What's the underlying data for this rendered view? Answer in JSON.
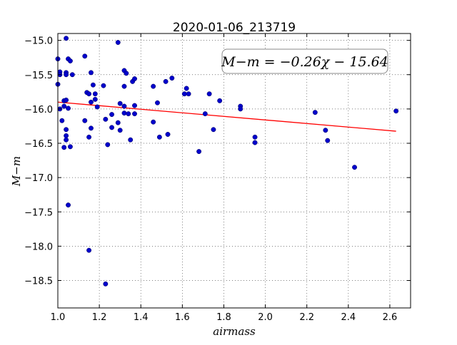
{
  "chart_data": {
    "type": "scatter",
    "title": "2020-01-06_213719",
    "xlabel": "airmass",
    "ylabel": "M−m",
    "xlim": [
      1.0,
      2.7
    ],
    "ylim": [
      -18.9,
      -14.9
    ],
    "xticks": [
      "1.0",
      "1.2",
      "1.4",
      "1.6",
      "1.8",
      "2.0",
      "2.2",
      "2.4",
      "2.6"
    ],
    "yticks": [
      "−15.0",
      "−15.5",
      "−16.0",
      "−16.5",
      "−17.0",
      "−17.5",
      "−18.0",
      "−18.5"
    ],
    "grid": true,
    "annotation": "M−m = −0.26χ − 15.64",
    "fit": {
      "slope": -0.26,
      "intercept": -15.64,
      "x_range": [
        1.0,
        2.63
      ],
      "color": "#ff0000"
    },
    "point_color": "#0000cc",
    "points": [
      [
        1.0,
        -15.27
      ],
      [
        1.0,
        -15.64
      ],
      [
        1.01,
        -15.46
      ],
      [
        1.01,
        -15.5
      ],
      [
        1.01,
        -16.0
      ],
      [
        1.02,
        -16.17
      ],
      [
        1.03,
        -15.96
      ],
      [
        1.03,
        -15.88
      ],
      [
        1.03,
        -16.56
      ],
      [
        1.04,
        -15.87
      ],
      [
        1.04,
        -15.47
      ],
      [
        1.04,
        -15.5
      ],
      [
        1.04,
        -16.3
      ],
      [
        1.04,
        -16.39
      ],
      [
        1.04,
        -16.45
      ],
      [
        1.04,
        -14.97
      ],
      [
        1.05,
        -15.99
      ],
      [
        1.05,
        -17.4
      ],
      [
        1.05,
        -15.27
      ],
      [
        1.06,
        -15.3
      ],
      [
        1.06,
        -16.55
      ],
      [
        1.07,
        -15.5
      ],
      [
        1.13,
        -15.23
      ],
      [
        1.13,
        -16.17
      ],
      [
        1.14,
        -15.76
      ],
      [
        1.15,
        -15.78
      ],
      [
        1.15,
        -16.41
      ],
      [
        1.15,
        -18.06
      ],
      [
        1.16,
        -15.47
      ],
      [
        1.16,
        -15.9
      ],
      [
        1.16,
        -16.28
      ],
      [
        1.17,
        -15.65
      ],
      [
        1.18,
        -15.78
      ],
      [
        1.18,
        -15.86
      ],
      [
        1.19,
        -15.97
      ],
      [
        1.22,
        -15.66
      ],
      [
        1.23,
        -16.15
      ],
      [
        1.23,
        -18.55
      ],
      [
        1.24,
        -16.52
      ],
      [
        1.26,
        -16.08
      ],
      [
        1.26,
        -16.27
      ],
      [
        1.29,
        -15.03
      ],
      [
        1.29,
        -16.2
      ],
      [
        1.3,
        -15.92
      ],
      [
        1.3,
        -16.31
      ],
      [
        1.32,
        -15.44
      ],
      [
        1.32,
        -15.67
      ],
      [
        1.32,
        -15.96
      ],
      [
        1.32,
        -16.06
      ],
      [
        1.33,
        -15.48
      ],
      [
        1.34,
        -16.07
      ],
      [
        1.35,
        -16.45
      ],
      [
        1.36,
        -15.6
      ],
      [
        1.37,
        -15.56
      ],
      [
        1.37,
        -15.95
      ],
      [
        1.37,
        -16.07
      ],
      [
        1.46,
        -15.67
      ],
      [
        1.46,
        -16.19
      ],
      [
        1.48,
        -15.91
      ],
      [
        1.49,
        -16.41
      ],
      [
        1.52,
        -15.6
      ],
      [
        1.53,
        -16.37
      ],
      [
        1.55,
        -15.55
      ],
      [
        1.61,
        -15.78
      ],
      [
        1.62,
        -15.7
      ],
      [
        1.63,
        -15.78
      ],
      [
        1.68,
        -16.62
      ],
      [
        1.71,
        -16.07
      ],
      [
        1.73,
        -15.78
      ],
      [
        1.75,
        -16.3
      ],
      [
        1.78,
        -15.88
      ],
      [
        1.88,
        -15.96
      ],
      [
        1.88,
        -16.0
      ],
      [
        1.95,
        -16.41
      ],
      [
        1.95,
        -16.49
      ],
      [
        2.24,
        -16.05
      ],
      [
        2.29,
        -16.31
      ],
      [
        2.3,
        -16.46
      ],
      [
        2.43,
        -16.85
      ],
      [
        2.63,
        -16.03
      ]
    ]
  }
}
